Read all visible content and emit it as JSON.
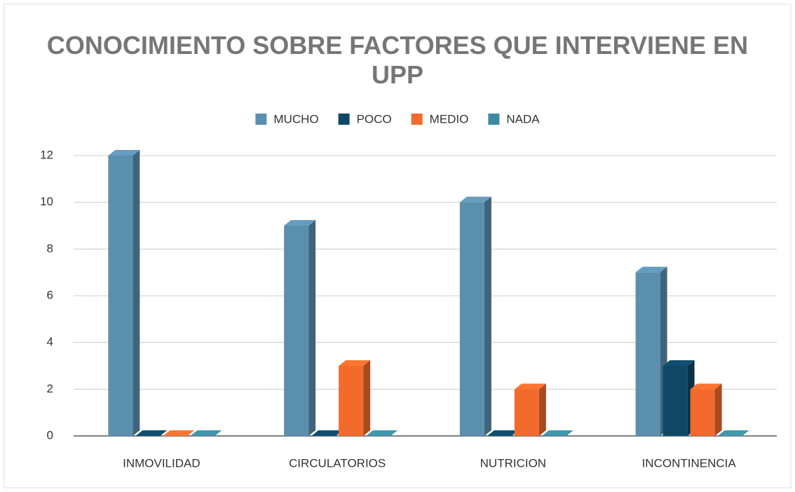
{
  "chart_data": {
    "type": "bar3d",
    "title": "CONOCIMIENTO SOBRE FACTORES QUE INTERVIENE EN UPP",
    "categories": [
      "INMOVILIDAD",
      "CIRCULATORIOS",
      "NUTRICION",
      "INCONTINENCIA"
    ],
    "series": [
      {
        "name": "MUCHO",
        "color": "#5b8fae",
        "values": [
          12,
          9,
          10,
          7
        ]
      },
      {
        "name": "POCO",
        "color": "#0e4866",
        "values": [
          0,
          0,
          0,
          3
        ]
      },
      {
        "name": "MEDIO",
        "color": "#f26a2c",
        "values": [
          0,
          3,
          2,
          2
        ]
      },
      {
        "name": "NADA",
        "color": "#3b8a9f",
        "values": [
          0,
          0,
          0,
          0
        ]
      }
    ],
    "ylim": [
      0,
      12
    ],
    "yticks": [
      0,
      2,
      4,
      6,
      8,
      10,
      12
    ],
    "grid": true,
    "legend": "top"
  }
}
